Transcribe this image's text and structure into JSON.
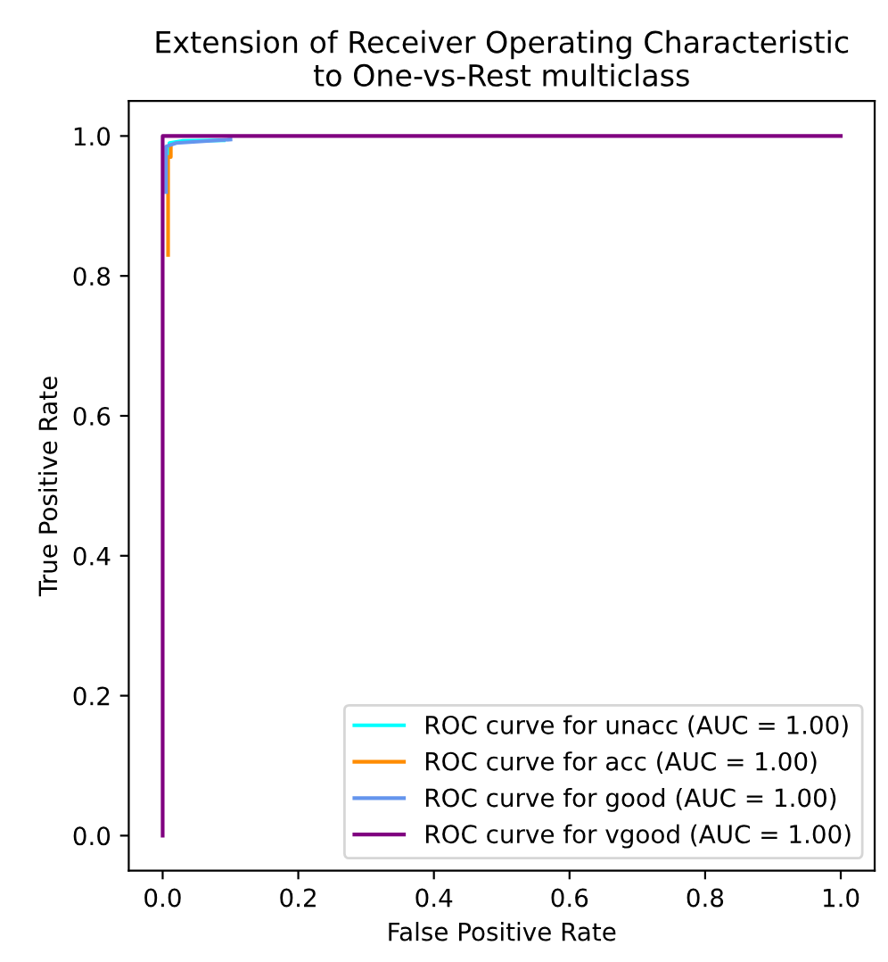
{
  "chart_data": {
    "type": "line",
    "title": "Extension of Receiver Operating Characteristic\nto One-vs-Rest multiclass",
    "xlabel": "False Positive Rate",
    "ylabel": "True Positive Rate",
    "series": [
      {
        "name": "ROC curve for unacc (AUC = 1.00)",
        "color": "#00ffff",
        "x": [
          0.01,
          0.01,
          0.03,
          0.09
        ],
        "values": [
          0.97,
          0.99,
          0.993,
          0.994
        ]
      },
      {
        "name": "ROC curve for acc (AUC = 1.00)",
        "color": "#ff8c00",
        "x": [
          0.008,
          0.008,
          0.012,
          0.012
        ],
        "values": [
          0.83,
          0.97,
          0.97,
          0.985
        ]
      },
      {
        "name": "ROC curve for good (AUC = 1.00)",
        "color": "#6495ed",
        "x": [
          0.005,
          0.005,
          0.02,
          0.1
        ],
        "values": [
          0.92,
          0.985,
          0.99,
          0.995
        ]
      },
      {
        "name": "ROC curve for vgood (AUC = 1.00)",
        "color": "#800080",
        "x": [
          0,
          0,
          1
        ],
        "values": [
          0,
          1,
          1
        ]
      }
    ],
    "xlim": [
      -0.05,
      1.05
    ],
    "ylim": [
      -0.05,
      1.05
    ],
    "xticks": [
      {
        "value": 0,
        "label": "0.0"
      },
      0.2,
      0.4,
      0.6,
      0.8,
      {
        "value": 1,
        "label": "1.0"
      }
    ],
    "yticks": [
      {
        "value": 0,
        "label": "0.0"
      },
      0.2,
      0.4,
      0.6,
      0.8,
      {
        "value": 1,
        "label": "1.0"
      }
    ],
    "legend": "lower right",
    "grid": false
  }
}
